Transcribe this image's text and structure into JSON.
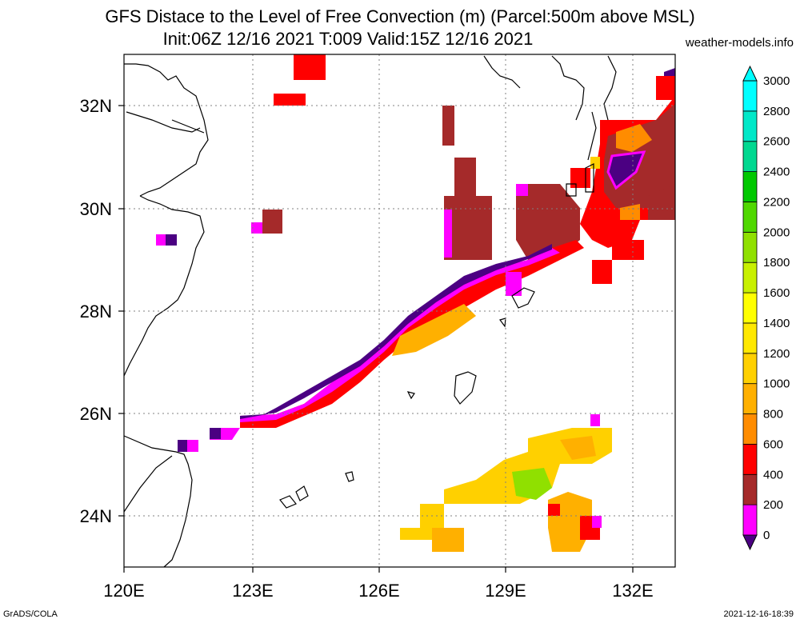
{
  "header": {
    "title_line1": "GFS Distace to the Level of Free Convection (m) (Parcel:500m above MSL)",
    "title_line2": "Init:06Z 12/16 2021 T:009 Valid:15Z 12/16 2021",
    "site": "weather-models.info"
  },
  "footer": {
    "credit": "GrADS/COLA",
    "timestamp": "2021-12-16-18:39"
  },
  "map": {
    "lon_range": [
      120,
      133
    ],
    "lat_range": [
      23,
      33
    ],
    "lon_ticks": [
      "120E",
      "123E",
      "126E",
      "129E",
      "132E"
    ],
    "lat_ticks": [
      "24N",
      "26N",
      "28N",
      "30N",
      "32N"
    ],
    "grid": "dotted"
  },
  "colorbar": {
    "labels": [
      "0",
      "200",
      "400",
      "600",
      "800",
      "1000",
      "1200",
      "1400",
      "1600",
      "1800",
      "2000",
      "2200",
      "2400",
      "2600",
      "2800",
      "3000"
    ],
    "colors": [
      "#4b0082",
      "#ff00ff",
      "#a52a2a",
      "#ff0000",
      "#ff8c00",
      "#ffb000",
      "#ffd000",
      "#ffe800",
      "#ffff00",
      "#c8f000",
      "#90e000",
      "#50d800",
      "#00c800",
      "#00d890",
      "#00e8c8",
      "#00ffff"
    ]
  }
}
